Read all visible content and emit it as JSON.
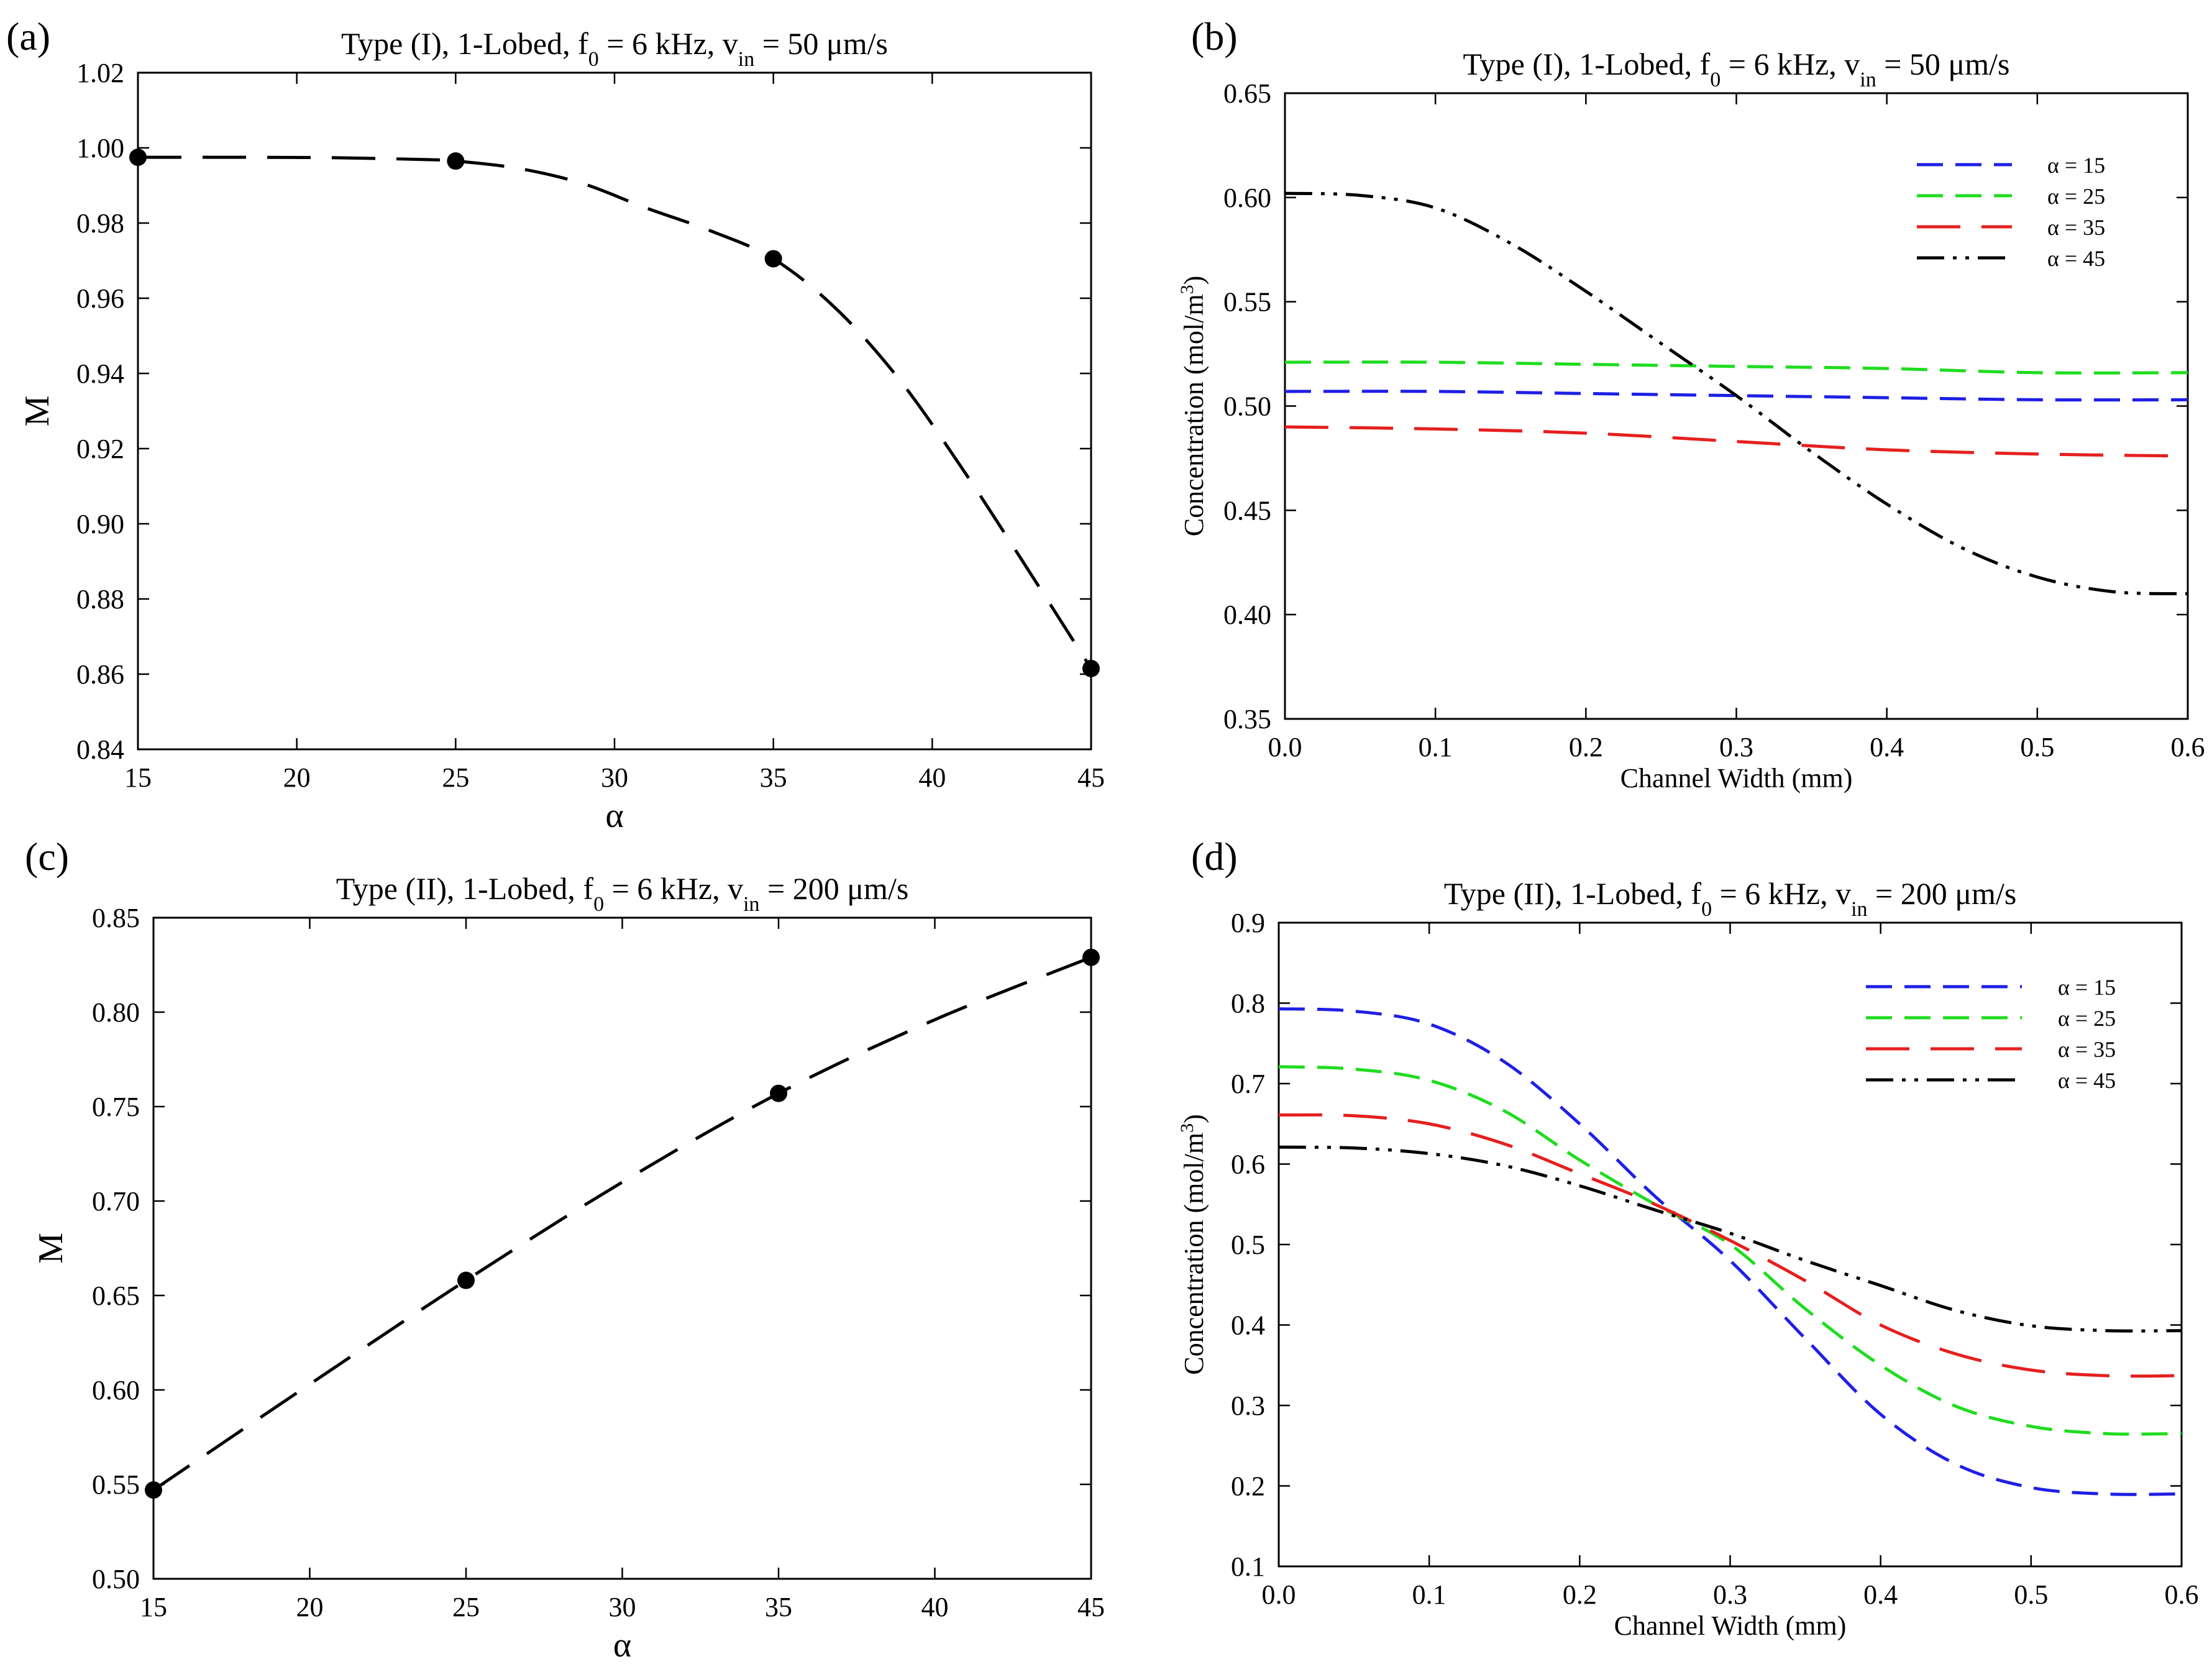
{
  "colors": {
    "axis": "#000000",
    "alpha15": "#1f1fe6",
    "alpha25": "#1fdc1f",
    "alpha35": "#e61f1f",
    "alpha45": "#000000"
  },
  "chart_data": [
    {
      "id": "a",
      "panel_label": "(a)",
      "type": "line",
      "title_parts": {
        "pre": "Type (I), 1-Lobed, f",
        "sub1": "0",
        "mid": " = 6 kHz, v",
        "sub2": "in",
        "post": " = 50 μm/s"
      },
      "xlabel": "α",
      "ylabel": "M",
      "xlim": [
        15,
        45
      ],
      "ylim": [
        0.84,
        1.02
      ],
      "xticks": [
        15,
        20,
        25,
        30,
        35,
        40,
        45
      ],
      "xtick_labels": [
        "15",
        "20",
        "25",
        "30",
        "35",
        "40",
        "45"
      ],
      "yticks": [
        0.84,
        0.86,
        0.88,
        0.9,
        0.92,
        0.94,
        0.96,
        0.98,
        1.0,
        1.02
      ],
      "ytick_labels": [
        "0.84",
        "0.86",
        "0.88",
        "0.90",
        "0.92",
        "0.94",
        "0.96",
        "0.98",
        "1.00",
        "1.02"
      ],
      "series": [
        {
          "name": "M",
          "color_key": "axis",
          "dash": "long",
          "markers": true,
          "x": [
            15,
            25,
            35,
            45
          ],
          "y": [
            0.9975,
            0.9965,
            0.9705,
            0.8615
          ],
          "curve_x": [
            15,
            18,
            21,
            24,
            25,
            27,
            29,
            31,
            33,
            35,
            37,
            39,
            41,
            43,
            45
          ],
          "curve_y": [
            0.9975,
            0.9975,
            0.9974,
            0.9969,
            0.9965,
            0.9945,
            0.9905,
            0.984,
            0.978,
            0.9705,
            0.957,
            0.938,
            0.914,
            0.888,
            0.8615
          ]
        }
      ]
    },
    {
      "id": "b",
      "panel_label": "(b)",
      "type": "line",
      "title_parts": {
        "pre": "Type (I), 1-Lobed, f",
        "sub1": "0",
        "mid": " = 6 kHz, v",
        "sub2": "in",
        "post": " = 50 μm/s"
      },
      "xlabel": "Channel Width (mm)",
      "ylabel_parts": {
        "pre": "Concentration (mol/m",
        "sup": "3",
        "post": ")"
      },
      "xlim": [
        0,
        0.6
      ],
      "ylim": [
        0.35,
        0.65
      ],
      "xticks": [
        0,
        0.1,
        0.2,
        0.3,
        0.4,
        0.5,
        0.6
      ],
      "xtick_labels": [
        "0.0",
        "0.1",
        "0.2",
        "0.3",
        "0.4",
        "0.5",
        "0.6"
      ],
      "yticks": [
        0.35,
        0.4,
        0.45,
        0.5,
        0.55,
        0.6,
        0.65
      ],
      "ytick_labels": [
        "0.35",
        "0.40",
        "0.45",
        "0.50",
        "0.55",
        "0.60",
        "0.65"
      ],
      "legend_position": "top-right",
      "series": [
        {
          "name": "α = 15",
          "color_key": "alpha15",
          "dash": "medium",
          "x": [
            0,
            0.1,
            0.2,
            0.3,
            0.4,
            0.5,
            0.6
          ],
          "y": [
            0.507,
            0.507,
            0.506,
            0.505,
            0.504,
            0.503,
            0.503
          ]
        },
        {
          "name": "α = 25",
          "color_key": "alpha25",
          "dash": "medium",
          "x": [
            0,
            0.1,
            0.2,
            0.3,
            0.4,
            0.5,
            0.6
          ],
          "y": [
            0.521,
            0.521,
            0.52,
            0.519,
            0.518,
            0.516,
            0.516
          ]
        },
        {
          "name": "α = 35",
          "color_key": "alpha35",
          "dash": "long",
          "x": [
            0,
            0.1,
            0.2,
            0.3,
            0.4,
            0.5,
            0.6
          ],
          "y": [
            0.49,
            0.489,
            0.487,
            0.483,
            0.479,
            0.477,
            0.476
          ]
        },
        {
          "name": "α = 45",
          "color_key": "alpha45",
          "dash": "dashdotdot",
          "x": [
            0,
            0.05,
            0.1,
            0.15,
            0.2,
            0.25,
            0.3,
            0.35,
            0.4,
            0.45,
            0.5,
            0.55,
            0.6
          ],
          "y": [
            0.602,
            0.601,
            0.595,
            0.578,
            0.555,
            0.53,
            0.505,
            0.478,
            0.453,
            0.432,
            0.418,
            0.411,
            0.41
          ]
        }
      ]
    },
    {
      "id": "c",
      "panel_label": "(c)",
      "type": "line",
      "title_parts": {
        "pre": "Type (II), 1-Lobed, f",
        "sub1": "0",
        "mid": " = 6 kHz, v",
        "sub2": "in",
        "post": " = 200 μm/s"
      },
      "xlabel": "α",
      "ylabel": "M",
      "xlim": [
        15,
        45
      ],
      "ylim": [
        0.5,
        0.85
      ],
      "xticks": [
        15,
        20,
        25,
        30,
        35,
        40,
        45
      ],
      "xtick_labels": [
        "15",
        "20",
        "25",
        "30",
        "35",
        "40",
        "45"
      ],
      "yticks": [
        0.5,
        0.55,
        0.6,
        0.65,
        0.7,
        0.75,
        0.8,
        0.85
      ],
      "ytick_labels": [
        "0.50",
        "0.55",
        "0.60",
        "0.65",
        "0.70",
        "0.75",
        "0.80",
        "0.85"
      ],
      "series": [
        {
          "name": "M",
          "color_key": "axis",
          "dash": "long",
          "markers": true,
          "x": [
            15,
            25,
            35,
            45
          ],
          "y": [
            0.547,
            0.658,
            0.757,
            0.829
          ],
          "curve_x": [
            15,
            20,
            25,
            30,
            35,
            40,
            45
          ],
          "curve_y": [
            0.547,
            0.603,
            0.658,
            0.71,
            0.757,
            0.796,
            0.829
          ]
        }
      ]
    },
    {
      "id": "d",
      "panel_label": "(d)",
      "type": "line",
      "title_parts": {
        "pre": "Type (II), 1-Lobed, f",
        "sub1": "0",
        "mid": " = 6 kHz, v",
        "sub2": "in",
        "post": " = 200 μm/s"
      },
      "xlabel": "Channel Width (mm)",
      "ylabel_parts": {
        "pre": "Concentration (mol/m",
        "sup": "3",
        "post": ")"
      },
      "xlim": [
        0,
        0.6
      ],
      "ylim": [
        0.1,
        0.9
      ],
      "xticks": [
        0,
        0.1,
        0.2,
        0.3,
        0.4,
        0.5,
        0.6
      ],
      "xtick_labels": [
        "0.0",
        "0.1",
        "0.2",
        "0.3",
        "0.4",
        "0.5",
        "0.6"
      ],
      "yticks": [
        0.1,
        0.2,
        0.3,
        0.4,
        0.5,
        0.6,
        0.7,
        0.8,
        0.9
      ],
      "ytick_labels": [
        "0.1",
        "0.2",
        "0.3",
        "0.4",
        "0.5",
        "0.6",
        "0.7",
        "0.8",
        "0.9"
      ],
      "legend_position": "top-right",
      "series": [
        {
          "name": "α = 15",
          "color_key": "alpha15",
          "dash": "medium",
          "x": [
            0,
            0.05,
            0.1,
            0.15,
            0.2,
            0.25,
            0.3,
            0.35,
            0.4,
            0.45,
            0.5,
            0.55,
            0.6
          ],
          "y": [
            0.793,
            0.79,
            0.774,
            0.727,
            0.65,
            0.56,
            0.48,
            0.383,
            0.289,
            0.227,
            0.198,
            0.19,
            0.19
          ]
        },
        {
          "name": "α = 25",
          "color_key": "alpha25",
          "dash": "medium",
          "x": [
            0,
            0.05,
            0.1,
            0.15,
            0.2,
            0.25,
            0.3,
            0.35,
            0.4,
            0.45,
            0.5,
            0.55,
            0.6
          ],
          "y": [
            0.721,
            0.718,
            0.704,
            0.666,
            0.605,
            0.55,
            0.5,
            0.42,
            0.35,
            0.299,
            0.274,
            0.265,
            0.265
          ]
        },
        {
          "name": "α = 35",
          "color_key": "alpha35",
          "dash": "long",
          "x": [
            0,
            0.05,
            0.1,
            0.15,
            0.2,
            0.25,
            0.3,
            0.35,
            0.4,
            0.45,
            0.5,
            0.55,
            0.6
          ],
          "y": [
            0.661,
            0.66,
            0.65,
            0.625,
            0.588,
            0.55,
            0.505,
            0.455,
            0.4,
            0.364,
            0.344,
            0.337,
            0.337
          ]
        },
        {
          "name": "α = 45",
          "color_key": "alpha45",
          "dash": "dashdotdot",
          "x": [
            0,
            0.05,
            0.1,
            0.15,
            0.2,
            0.25,
            0.3,
            0.35,
            0.4,
            0.45,
            0.5,
            0.55,
            0.6
          ],
          "y": [
            0.621,
            0.62,
            0.613,
            0.598,
            0.573,
            0.543,
            0.514,
            0.48,
            0.449,
            0.418,
            0.399,
            0.393,
            0.393
          ]
        }
      ]
    }
  ]
}
